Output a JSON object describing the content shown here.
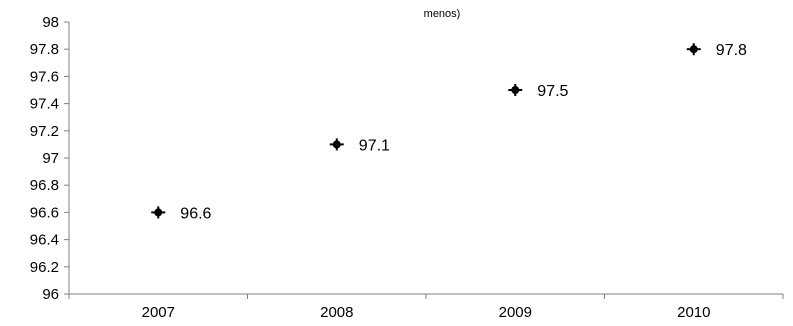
{
  "chart_data": {
    "type": "scatter",
    "title": "menos)",
    "categories": [
      "2007",
      "2008",
      "2009",
      "2010"
    ],
    "values": [
      96.6,
      97.1,
      97.5,
      97.8
    ],
    "data_labels": [
      "96.6",
      "97.1",
      "97.5",
      "97.8"
    ],
    "y_ticks": [
      "96",
      "96.2",
      "96.4",
      "96.6",
      "96.8",
      "97",
      "97.2",
      "97.4",
      "97.6",
      "97.8",
      "98"
    ],
    "ylim": [
      96,
      98
    ],
    "grid": false,
    "legend": "none",
    "marker_color": "#000000",
    "axis_color": "#808080"
  }
}
